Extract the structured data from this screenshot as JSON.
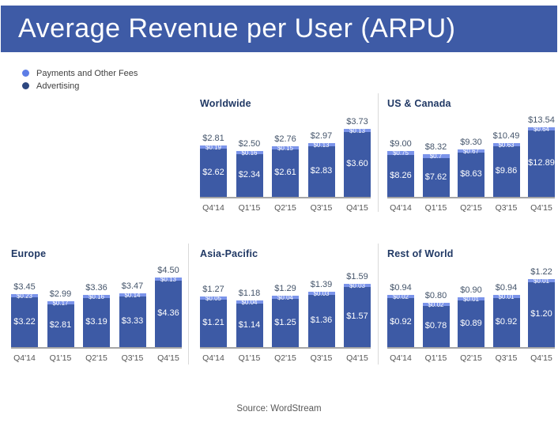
{
  "title": "Average Revenue per User (ARPU)",
  "legend": [
    {
      "label": "Payments and Other Fees",
      "color": "#5d7de6"
    },
    {
      "label": "Advertising",
      "color": "#2d4780"
    }
  ],
  "source": "Source: WordStream",
  "colors": {
    "header_bg": "#3e5ba6",
    "bar_advertising": "#3d5aa5",
    "bar_payments": "#7b94ea",
    "chart_title": "#203864",
    "total_label": "#44546a",
    "axis_label": "#555555",
    "axis_line": "#a6a6a6",
    "divider": "#d9d9d9",
    "source_text": "#595959"
  },
  "chart_data": [
    {
      "type": "bar",
      "title": "Worldwide",
      "categories": [
        "Q4'14",
        "Q1'15",
        "Q2'15",
        "Q3'15",
        "Q4'15"
      ],
      "series": [
        {
          "name": "Advertising",
          "values": [
            2.62,
            2.34,
            2.61,
            2.83,
            3.6
          ],
          "labels": [
            "$2.62",
            "$2.34",
            "$2.61",
            "$2.83",
            "$3.60"
          ]
        },
        {
          "name": "Payments and Other Fees",
          "values": [
            0.19,
            0.16,
            0.15,
            0.13,
            0.13
          ],
          "labels": [
            "$0.19",
            "$0.16",
            "$0.15",
            "$0.13",
            "$0.13"
          ]
        }
      ],
      "totals": [
        2.81,
        2.5,
        2.76,
        2.97,
        3.73
      ],
      "total_labels": [
        "$2.81",
        "$2.50",
        "$2.76",
        "$2.97",
        "$3.73"
      ],
      "ylabel": "",
      "xlabel": "",
      "grid": false,
      "legend_position": "top-left"
    },
    {
      "type": "bar",
      "title": "US & Canada",
      "categories": [
        "Q4'14",
        "Q1'15",
        "Q2'15",
        "Q3'15",
        "Q4'15"
      ],
      "series": [
        {
          "name": "Advertising",
          "values": [
            8.26,
            7.62,
            8.63,
            9.86,
            12.89
          ],
          "labels": [
            "$8.26",
            "$7.62",
            "$8.63",
            "$9.86",
            "$12.89"
          ]
        },
        {
          "name": "Payments and Other Fees",
          "values": [
            0.75,
            0.7,
            0.67,
            0.63,
            0.64
          ],
          "labels": [
            "$0.75",
            "$0.7",
            "$0.67",
            "$0.63",
            "$0.64"
          ]
        }
      ],
      "totals": [
        9.0,
        8.32,
        9.3,
        10.49,
        13.54
      ],
      "total_labels": [
        "$9.00",
        "$8.32",
        "$9.30",
        "$10.49",
        "$13.54"
      ],
      "ylabel": "",
      "xlabel": "",
      "grid": false,
      "legend_position": "top-left"
    },
    {
      "type": "bar",
      "title": "Europe",
      "categories": [
        "Q4'14",
        "Q1'15",
        "Q2'15",
        "Q3'15",
        "Q4'15"
      ],
      "series": [
        {
          "name": "Advertising",
          "values": [
            3.22,
            2.81,
            3.19,
            3.33,
            4.36
          ],
          "labels": [
            "$3.22",
            "$2.81",
            "$3.19",
            "$3.33",
            "$4.36"
          ]
        },
        {
          "name": "Payments and Other Fees",
          "values": [
            0.23,
            0.17,
            0.16,
            0.14,
            0.13
          ],
          "labels": [
            "$0.23",
            "$0.17",
            "$0.16",
            "$0.14",
            "$0.13"
          ]
        }
      ],
      "totals": [
        3.45,
        2.99,
        3.36,
        3.47,
        4.5
      ],
      "total_labels": [
        "$3.45",
        "$2.99",
        "$3.36",
        "$3.47",
        "$4.50"
      ],
      "ylabel": "",
      "xlabel": "",
      "grid": false,
      "legend_position": "top-left"
    },
    {
      "type": "bar",
      "title": "Asia-Pacific",
      "categories": [
        "Q4'14",
        "Q1'15",
        "Q2'15",
        "Q3'15",
        "Q4'15"
      ],
      "series": [
        {
          "name": "Advertising",
          "values": [
            1.21,
            1.14,
            1.25,
            1.36,
            1.57
          ],
          "labels": [
            "$1.21",
            "$1.14",
            "$1.25",
            "$1.36",
            "$1.57"
          ]
        },
        {
          "name": "Payments and Other Fees",
          "values": [
            0.05,
            0.04,
            0.04,
            0.03,
            0.03
          ],
          "labels": [
            "$0.05",
            "$0.04",
            "$0.04",
            "$0.03",
            "$0.03"
          ]
        }
      ],
      "totals": [
        1.27,
        1.18,
        1.29,
        1.39,
        1.59
      ],
      "total_labels": [
        "$1.27",
        "$1.18",
        "$1.29",
        "$1.39",
        "$1.59"
      ],
      "ylabel": "",
      "xlabel": "",
      "grid": false,
      "legend_position": "top-left"
    },
    {
      "type": "bar",
      "title": "Rest of World",
      "categories": [
        "Q4'14",
        "Q1'15",
        "Q2'15",
        "Q3'15",
        "Q4'15"
      ],
      "series": [
        {
          "name": "Advertising",
          "values": [
            0.92,
            0.78,
            0.89,
            0.92,
            1.2
          ],
          "labels": [
            "$0.92",
            "$0.78",
            "$0.89",
            "$0.92",
            "$1.20"
          ]
        },
        {
          "name": "Payments and Other Fees",
          "values": [
            0.02,
            0.02,
            0.01,
            0.01,
            0.01
          ],
          "labels": [
            "$0.02",
            "$0.02",
            "$0.01",
            "$0.01",
            "$0.01"
          ]
        }
      ],
      "totals": [
        0.94,
        0.8,
        0.9,
        0.94,
        1.22
      ],
      "total_labels": [
        "$0.94",
        "$0.80",
        "$0.90",
        "$0.94",
        "$1.22"
      ],
      "ylabel": "",
      "xlabel": "",
      "grid": false,
      "legend_position": "top-left"
    }
  ]
}
